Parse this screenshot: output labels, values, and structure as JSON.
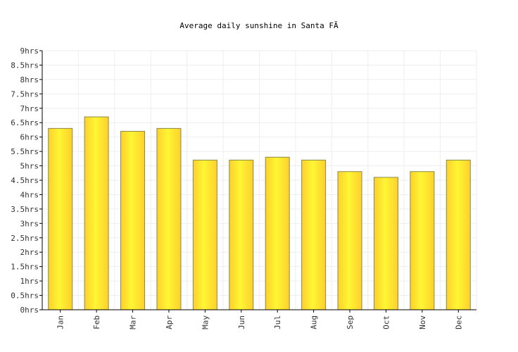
{
  "chart_data": {
    "type": "bar",
    "title": "Average daily sunshine in Santa FÃ",
    "xlabel": "",
    "ylabel": "",
    "categories": [
      "Jan",
      "Feb",
      "Mar",
      "Apr",
      "May",
      "Jun",
      "Jul",
      "Aug",
      "Sep",
      "Oct",
      "Nov",
      "Dec"
    ],
    "values": [
      6.3,
      6.7,
      6.2,
      6.3,
      5.2,
      5.2,
      5.3,
      5.2,
      4.8,
      4.6,
      4.8,
      5.2
    ],
    "unit": "hrs",
    "ylim": [
      0,
      9
    ],
    "ytick_labels": [
      "0hrs",
      "0.5hrs",
      "1hrs",
      "1.5hrs",
      "2hrs",
      "2.5hrs",
      "3hrs",
      "3.5hrs",
      "4hrs",
      "4.5hrs",
      "5hrs",
      "5.5hrs",
      "6hrs",
      "6.5hrs",
      "7hrs",
      "7.5hrs",
      "8hrs",
      "8.5hrs",
      "9hrs"
    ],
    "grid": true,
    "colors": {
      "bar_light": "#fff633",
      "bar_dark": "#fdd02d",
      "bar_edge": "#8a8a4a",
      "grid": "#eeeeee",
      "axis": "#000000"
    }
  }
}
